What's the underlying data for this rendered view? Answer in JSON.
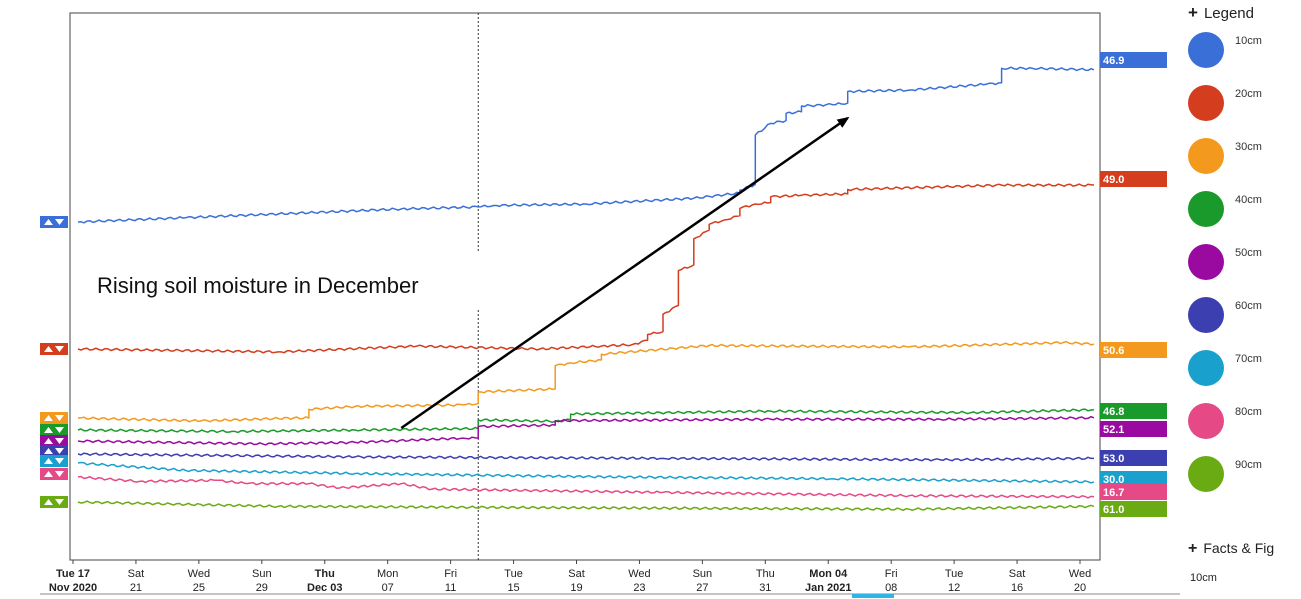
{
  "chart_data": {
    "type": "line",
    "title": "",
    "xlabel": "",
    "ylabel": "",
    "x_ticks": [
      {
        "line1": "Tue 17",
        "line2": "Nov 2020",
        "bold": true
      },
      {
        "line1": "Sat",
        "line2": "21",
        "bold": false
      },
      {
        "line1": "Wed",
        "line2": "25",
        "bold": false
      },
      {
        "line1": "Sun",
        "line2": "29",
        "bold": false
      },
      {
        "line1": "Thu",
        "line2": "Dec 03",
        "bold": true
      },
      {
        "line1": "Mon",
        "line2": "07",
        "bold": false
      },
      {
        "line1": "Fri",
        "line2": "11",
        "bold": false
      },
      {
        "line1": "Tue",
        "line2": "15",
        "bold": false
      },
      {
        "line1": "Sat",
        "line2": "19",
        "bold": false
      },
      {
        "line1": "Wed",
        "line2": "23",
        "bold": false
      },
      {
        "line1": "Sun",
        "line2": "27",
        "bold": false
      },
      {
        "line1": "Thu",
        "line2": "31",
        "bold": false
      },
      {
        "line1": "Mon 04",
        "line2": "Jan 2021",
        "bold": true
      },
      {
        "line1": "Fri",
        "line2": "08",
        "bold": false
      },
      {
        "line1": "Tue",
        "line2": "12",
        "bold": false
      },
      {
        "line1": "Sat",
        "line2": "16",
        "bold": false
      },
      {
        "line1": "Wed",
        "line2": "20",
        "bold": false
      }
    ],
    "x_range": [
      "2020-11-17",
      "2021-01-22"
    ],
    "vertical_marker_date": "2020-12-13",
    "annotation": {
      "text": "Rising soil moisture in December",
      "arrow_from": {
        "date": "2020-12-08",
        "series": "40cm"
      },
      "arrow_to": {
        "date": "2021-01-06",
        "series": "10cm"
      }
    },
    "series": [
      {
        "name": "10cm",
        "color": "#3a6fd8",
        "end_value": "46.9",
        "points": [
          [
            "2020-11-17",
            0.0
          ],
          [
            "2020-11-24",
            0.15
          ],
          [
            "2020-12-01",
            0.3
          ],
          [
            "2020-12-08",
            0.45
          ],
          [
            "2020-12-13",
            0.52
          ],
          [
            "2020-12-14",
            0.57
          ],
          [
            "2020-12-20",
            0.62
          ],
          [
            "2020-12-27",
            0.82
          ],
          [
            "2020-12-30",
            1.0
          ],
          [
            "2020-12-30",
            1.1
          ],
          [
            "2020-12-31",
            1.3
          ],
          [
            "2020-12-31",
            3.0
          ],
          [
            "2021-01-01",
            3.4
          ],
          [
            "2021-01-02",
            3.5
          ],
          [
            "2021-01-02",
            3.75
          ],
          [
            "2021-01-03",
            3.8
          ],
          [
            "2021-01-03",
            4.0
          ],
          [
            "2021-01-05",
            4.05
          ],
          [
            "2021-01-06",
            4.1
          ],
          [
            "2021-01-06",
            4.5
          ],
          [
            "2021-01-10",
            4.55
          ],
          [
            "2021-01-15",
            4.75
          ],
          [
            "2021-01-16",
            4.8
          ],
          [
            "2021-01-16",
            5.3
          ],
          [
            "2021-01-18",
            5.3
          ],
          [
            "2021-01-22",
            5.25
          ]
        ]
      },
      {
        "name": "20cm",
        "color": "#d43d1e",
        "end_value": "49.0",
        "points": [
          [
            "2020-11-17",
            0.0
          ],
          [
            "2020-11-30",
            -0.1
          ],
          [
            "2020-12-09",
            0.1
          ],
          [
            "2020-12-17",
            0.0
          ],
          [
            "2020-12-21",
            0.1
          ],
          [
            "2020-12-23",
            0.15
          ],
          [
            "2020-12-24",
            0.3
          ],
          [
            "2020-12-24",
            0.5
          ],
          [
            "2020-12-25",
            0.6
          ],
          [
            "2020-12-25",
            1.2
          ],
          [
            "2020-12-26",
            1.5
          ],
          [
            "2020-12-26",
            2.7
          ],
          [
            "2020-12-27",
            2.9
          ],
          [
            "2020-12-27",
            3.8
          ],
          [
            "2020-12-28",
            4.1
          ],
          [
            "2020-12-28",
            4.3
          ],
          [
            "2020-12-29",
            4.45
          ],
          [
            "2020-12-30",
            4.6
          ],
          [
            "2020-12-30",
            4.85
          ],
          [
            "2020-12-31",
            5.0
          ],
          [
            "2021-01-01",
            5.05
          ],
          [
            "2021-01-01",
            5.25
          ],
          [
            "2021-01-03",
            5.3
          ],
          [
            "2021-01-06",
            5.35
          ],
          [
            "2021-01-06",
            5.5
          ],
          [
            "2021-01-16",
            5.65
          ],
          [
            "2021-01-22",
            5.65
          ]
        ]
      },
      {
        "name": "30cm",
        "color": "#f39a1e",
        "end_value": "50.6",
        "points": [
          [
            "2020-11-17",
            0.0
          ],
          [
            "2020-11-25",
            -0.1
          ],
          [
            "2020-12-01",
            0.0
          ],
          [
            "2020-12-02",
            0.0
          ],
          [
            "2020-12-02",
            0.3
          ],
          [
            "2020-12-05",
            0.4
          ],
          [
            "2020-12-12",
            0.45
          ],
          [
            "2020-12-13",
            0.5
          ],
          [
            "2020-12-13",
            0.9
          ],
          [
            "2020-12-18",
            1.0
          ],
          [
            "2020-12-18",
            1.8
          ],
          [
            "2020-12-19",
            1.9
          ],
          [
            "2020-12-21",
            2.0
          ],
          [
            "2020-12-21",
            2.2
          ],
          [
            "2020-12-28",
            2.5
          ],
          [
            "2021-01-10",
            2.45
          ],
          [
            "2021-01-20",
            2.6
          ],
          [
            "2021-01-22",
            2.55
          ]
        ]
      },
      {
        "name": "40cm",
        "color": "#1a9a2a",
        "end_value": "46.8",
        "points": [
          [
            "2020-11-17",
            0.0
          ],
          [
            "2020-11-27",
            -0.05
          ],
          [
            "2020-12-05",
            0.0
          ],
          [
            "2020-12-13",
            0.05
          ],
          [
            "2020-12-13",
            0.35
          ],
          [
            "2020-12-18",
            0.3
          ],
          [
            "2020-12-19",
            0.35
          ],
          [
            "2020-12-19",
            0.55
          ],
          [
            "2021-01-01",
            0.65
          ],
          [
            "2021-01-14",
            0.6
          ],
          [
            "2021-01-22",
            0.7
          ]
        ]
      },
      {
        "name": "50cm",
        "color": "#9a0aa0",
        "end_value": "52.1",
        "points": [
          [
            "2020-11-17",
            0.0
          ],
          [
            "2020-11-29",
            -0.1
          ],
          [
            "2020-12-05",
            -0.05
          ],
          [
            "2020-12-12",
            0.1
          ],
          [
            "2020-12-13",
            0.1
          ],
          [
            "2020-12-13",
            0.5
          ],
          [
            "2020-12-18",
            0.55
          ],
          [
            "2020-12-18",
            0.7
          ],
          [
            "2021-01-01",
            0.75
          ],
          [
            "2021-01-12",
            0.75
          ],
          [
            "2021-01-22",
            0.8
          ]
        ]
      },
      {
        "name": "60cm",
        "color": "#3b3fb0",
        "end_value": "53.0",
        "points": [
          [
            "2020-11-17",
            0.0
          ],
          [
            "2020-12-05",
            -0.1
          ],
          [
            "2020-12-25",
            -0.15
          ],
          [
            "2021-01-12",
            -0.2
          ],
          [
            "2021-01-22",
            -0.15
          ]
        ]
      },
      {
        "name": "70cm",
        "color": "#1aa0cc",
        "end_value": "30.0",
        "points": [
          [
            "2020-11-17",
            0.0
          ],
          [
            "2020-11-24",
            -0.35
          ],
          [
            "2020-12-05",
            -0.5
          ],
          [
            "2020-12-20",
            -0.65
          ],
          [
            "2021-01-05",
            -0.75
          ],
          [
            "2021-01-22",
            -0.9
          ]
        ]
      },
      {
        "name": "80cm",
        "color": "#e64a86",
        "end_value": "16.7",
        "points": [
          [
            "2020-11-17",
            0.0
          ],
          [
            "2020-11-21",
            -0.2
          ],
          [
            "2020-11-26",
            -0.15
          ],
          [
            "2020-11-28",
            -0.3
          ],
          [
            "2020-12-02",
            -0.3
          ],
          [
            "2020-12-04",
            -0.5
          ],
          [
            "2020-12-06",
            -0.4
          ],
          [
            "2020-12-08",
            -0.3
          ],
          [
            "2020-12-10",
            -0.55
          ],
          [
            "2020-12-25",
            -0.7
          ],
          [
            "2021-01-10",
            -0.85
          ],
          [
            "2021-01-22",
            -0.9
          ]
        ]
      },
      {
        "name": "90cm",
        "color": "#6aaa12",
        "end_value": "61.0",
        "points": [
          [
            "2020-11-17",
            0.0
          ],
          [
            "2020-11-30",
            -0.15
          ],
          [
            "2020-12-20",
            -0.2
          ],
          [
            "2021-01-10",
            -0.25
          ],
          [
            "2021-01-22",
            -0.15
          ]
        ]
      }
    ]
  },
  "legend": {
    "header": "Legend",
    "items": [
      {
        "label": "10cm",
        "color": "#3a6fd8"
      },
      {
        "label": "20cm",
        "color": "#d43d1e"
      },
      {
        "label": "30cm",
        "color": "#f39a1e"
      },
      {
        "label": "40cm",
        "color": "#1a9a2a"
      },
      {
        "label": "50cm",
        "color": "#9a0aa0"
      },
      {
        "label": "60cm",
        "color": "#3b3fb0"
      },
      {
        "label": "70cm",
        "color": "#1aa0cc"
      },
      {
        "label": "80cm",
        "color": "#e64a86"
      },
      {
        "label": "90cm",
        "color": "#6aaa12"
      }
    ]
  },
  "facts": {
    "header": "Facts & Fig",
    "sub": "10cm"
  },
  "plus_glyph": "+"
}
